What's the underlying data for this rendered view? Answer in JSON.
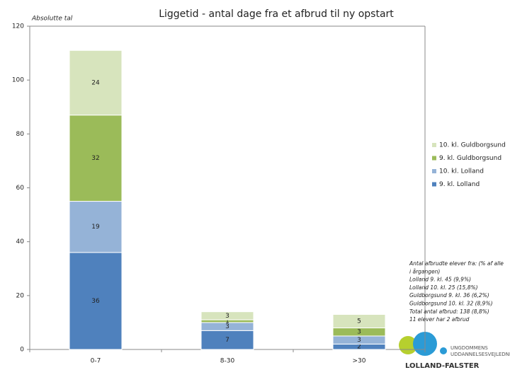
{
  "chart_data": {
    "type": "stacked_bar",
    "title": "Liggetid - antal dage fra et afbrud til ny opstart",
    "y_label": "Absolutte tal",
    "categories": [
      "0-7",
      "8-30",
      ">30"
    ],
    "series": [
      {
        "name": "9. kl. Lolland",
        "color": "#4f81bd",
        "values": [
          36,
          7,
          2
        ]
      },
      {
        "name": "10. kl. Lolland",
        "color": "#95b3d7",
        "values": [
          19,
          3,
          3
        ]
      },
      {
        "name": "9. kl. Guldborgsund",
        "color": "#9bbb59",
        "values": [
          32,
          1,
          3
        ]
      },
      {
        "name": "10. kl. Guldborgsund",
        "color": "#d7e4bd",
        "values": [
          24,
          3,
          5
        ]
      }
    ],
    "ylim": [
      0,
      120
    ],
    "yticks": [
      0,
      20,
      40,
      60,
      80,
      100,
      120
    ],
    "grid": false,
    "legend": "right",
    "annotations": [
      "Antal afbrudte elever fra: (% af alle",
      "i årgangen)",
      "Lolland 9. kl. 45 (9,9%)",
      "Lolland 10. kl. 25 (15,8%)",
      "Guldborgsund 9. kl. 36 (6,2%)",
      "Guldborgsund 10. kl. 32 (8,9%)",
      "Total antal afbrud: 138 (8,8%)",
      "11 elever har 2 afbrud"
    ],
    "logo": [
      "UNGDOMMENS",
      "UDDANNELSESVEJLEDNING",
      "LOLLAND-FALSTER"
    ]
  }
}
